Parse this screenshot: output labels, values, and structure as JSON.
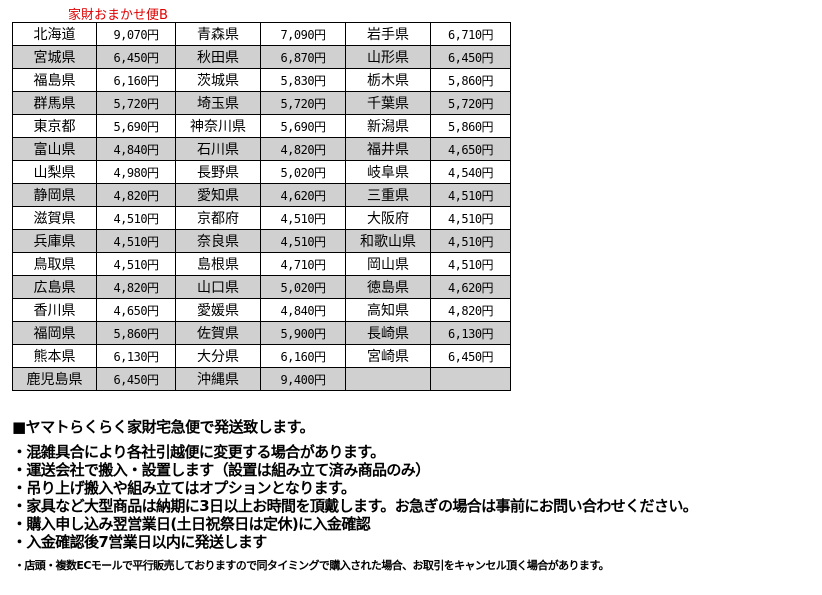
{
  "title": "家財おまかせ便B",
  "rows": [
    [
      [
        "北海道",
        "9,070円"
      ],
      [
        "青森県",
        "7,090円"
      ],
      [
        "岩手県",
        "6,710円"
      ]
    ],
    [
      [
        "宮城県",
        "6,450円"
      ],
      [
        "秋田県",
        "6,870円"
      ],
      [
        "山形県",
        "6,450円"
      ]
    ],
    [
      [
        "福島県",
        "6,160円"
      ],
      [
        "茨城県",
        "5,830円"
      ],
      [
        "栃木県",
        "5,860円"
      ]
    ],
    [
      [
        "群馬県",
        "5,720円"
      ],
      [
        "埼玉県",
        "5,720円"
      ],
      [
        "千葉県",
        "5,720円"
      ]
    ],
    [
      [
        "東京都",
        "5,690円"
      ],
      [
        "神奈川県",
        "5,690円"
      ],
      [
        "新潟県",
        "5,860円"
      ]
    ],
    [
      [
        "富山県",
        "4,840円"
      ],
      [
        "石川県",
        "4,820円"
      ],
      [
        "福井県",
        "4,650円"
      ]
    ],
    [
      [
        "山梨県",
        "4,980円"
      ],
      [
        "長野県",
        "5,020円"
      ],
      [
        "岐阜県",
        "4,540円"
      ]
    ],
    [
      [
        "静岡県",
        "4,820円"
      ],
      [
        "愛知県",
        "4,620円"
      ],
      [
        "三重県",
        "4,510円"
      ]
    ],
    [
      [
        "滋賀県",
        "4,510円"
      ],
      [
        "京都府",
        "4,510円"
      ],
      [
        "大阪府",
        "4,510円"
      ]
    ],
    [
      [
        "兵庫県",
        "4,510円"
      ],
      [
        "奈良県",
        "4,510円"
      ],
      [
        "和歌山県",
        "4,510円"
      ]
    ],
    [
      [
        "鳥取県",
        "4,510円"
      ],
      [
        "島根県",
        "4,710円"
      ],
      [
        "岡山県",
        "4,510円"
      ]
    ],
    [
      [
        "広島県",
        "4,820円"
      ],
      [
        "山口県",
        "5,020円"
      ],
      [
        "徳島県",
        "4,620円"
      ]
    ],
    [
      [
        "香川県",
        "4,650円"
      ],
      [
        "愛媛県",
        "4,840円"
      ],
      [
        "高知県",
        "4,820円"
      ]
    ],
    [
      [
        "福岡県",
        "5,860円"
      ],
      [
        "佐賀県",
        "5,900円"
      ],
      [
        "長崎県",
        "6,130円"
      ]
    ],
    [
      [
        "熊本県",
        "6,130円"
      ],
      [
        "大分県",
        "6,160円"
      ],
      [
        "宮崎県",
        "6,450円"
      ]
    ],
    [
      [
        "鹿児島県",
        "6,450円"
      ],
      [
        "沖縄県",
        "9,400円"
      ],
      [
        "",
        ""
      ]
    ]
  ],
  "heading": "■ヤマトらくらく家財宅急便で発送致します。",
  "notes": [
    "・混雑具合により各社引越便に変更する場合があります。",
    "・運送会社で搬入・設置します（設置は組み立て済み商品のみ）",
    "・吊り上げ搬入や組み立てはオプションとなります。",
    "・家具など大型商品は納期に3日以上お時間を頂戴します。お急ぎの場合は事前にお問い合わせください。",
    "・購入申し込み翌営業日(土日祝祭日は定休)に入金確認",
    "・入金確認後7営業日以内に発送します"
  ],
  "footnote": "・店頭・複数ECモールで平行販売しておりますので同タイミングで購入された場合、お取引をキャンセル頂く場合があります。"
}
